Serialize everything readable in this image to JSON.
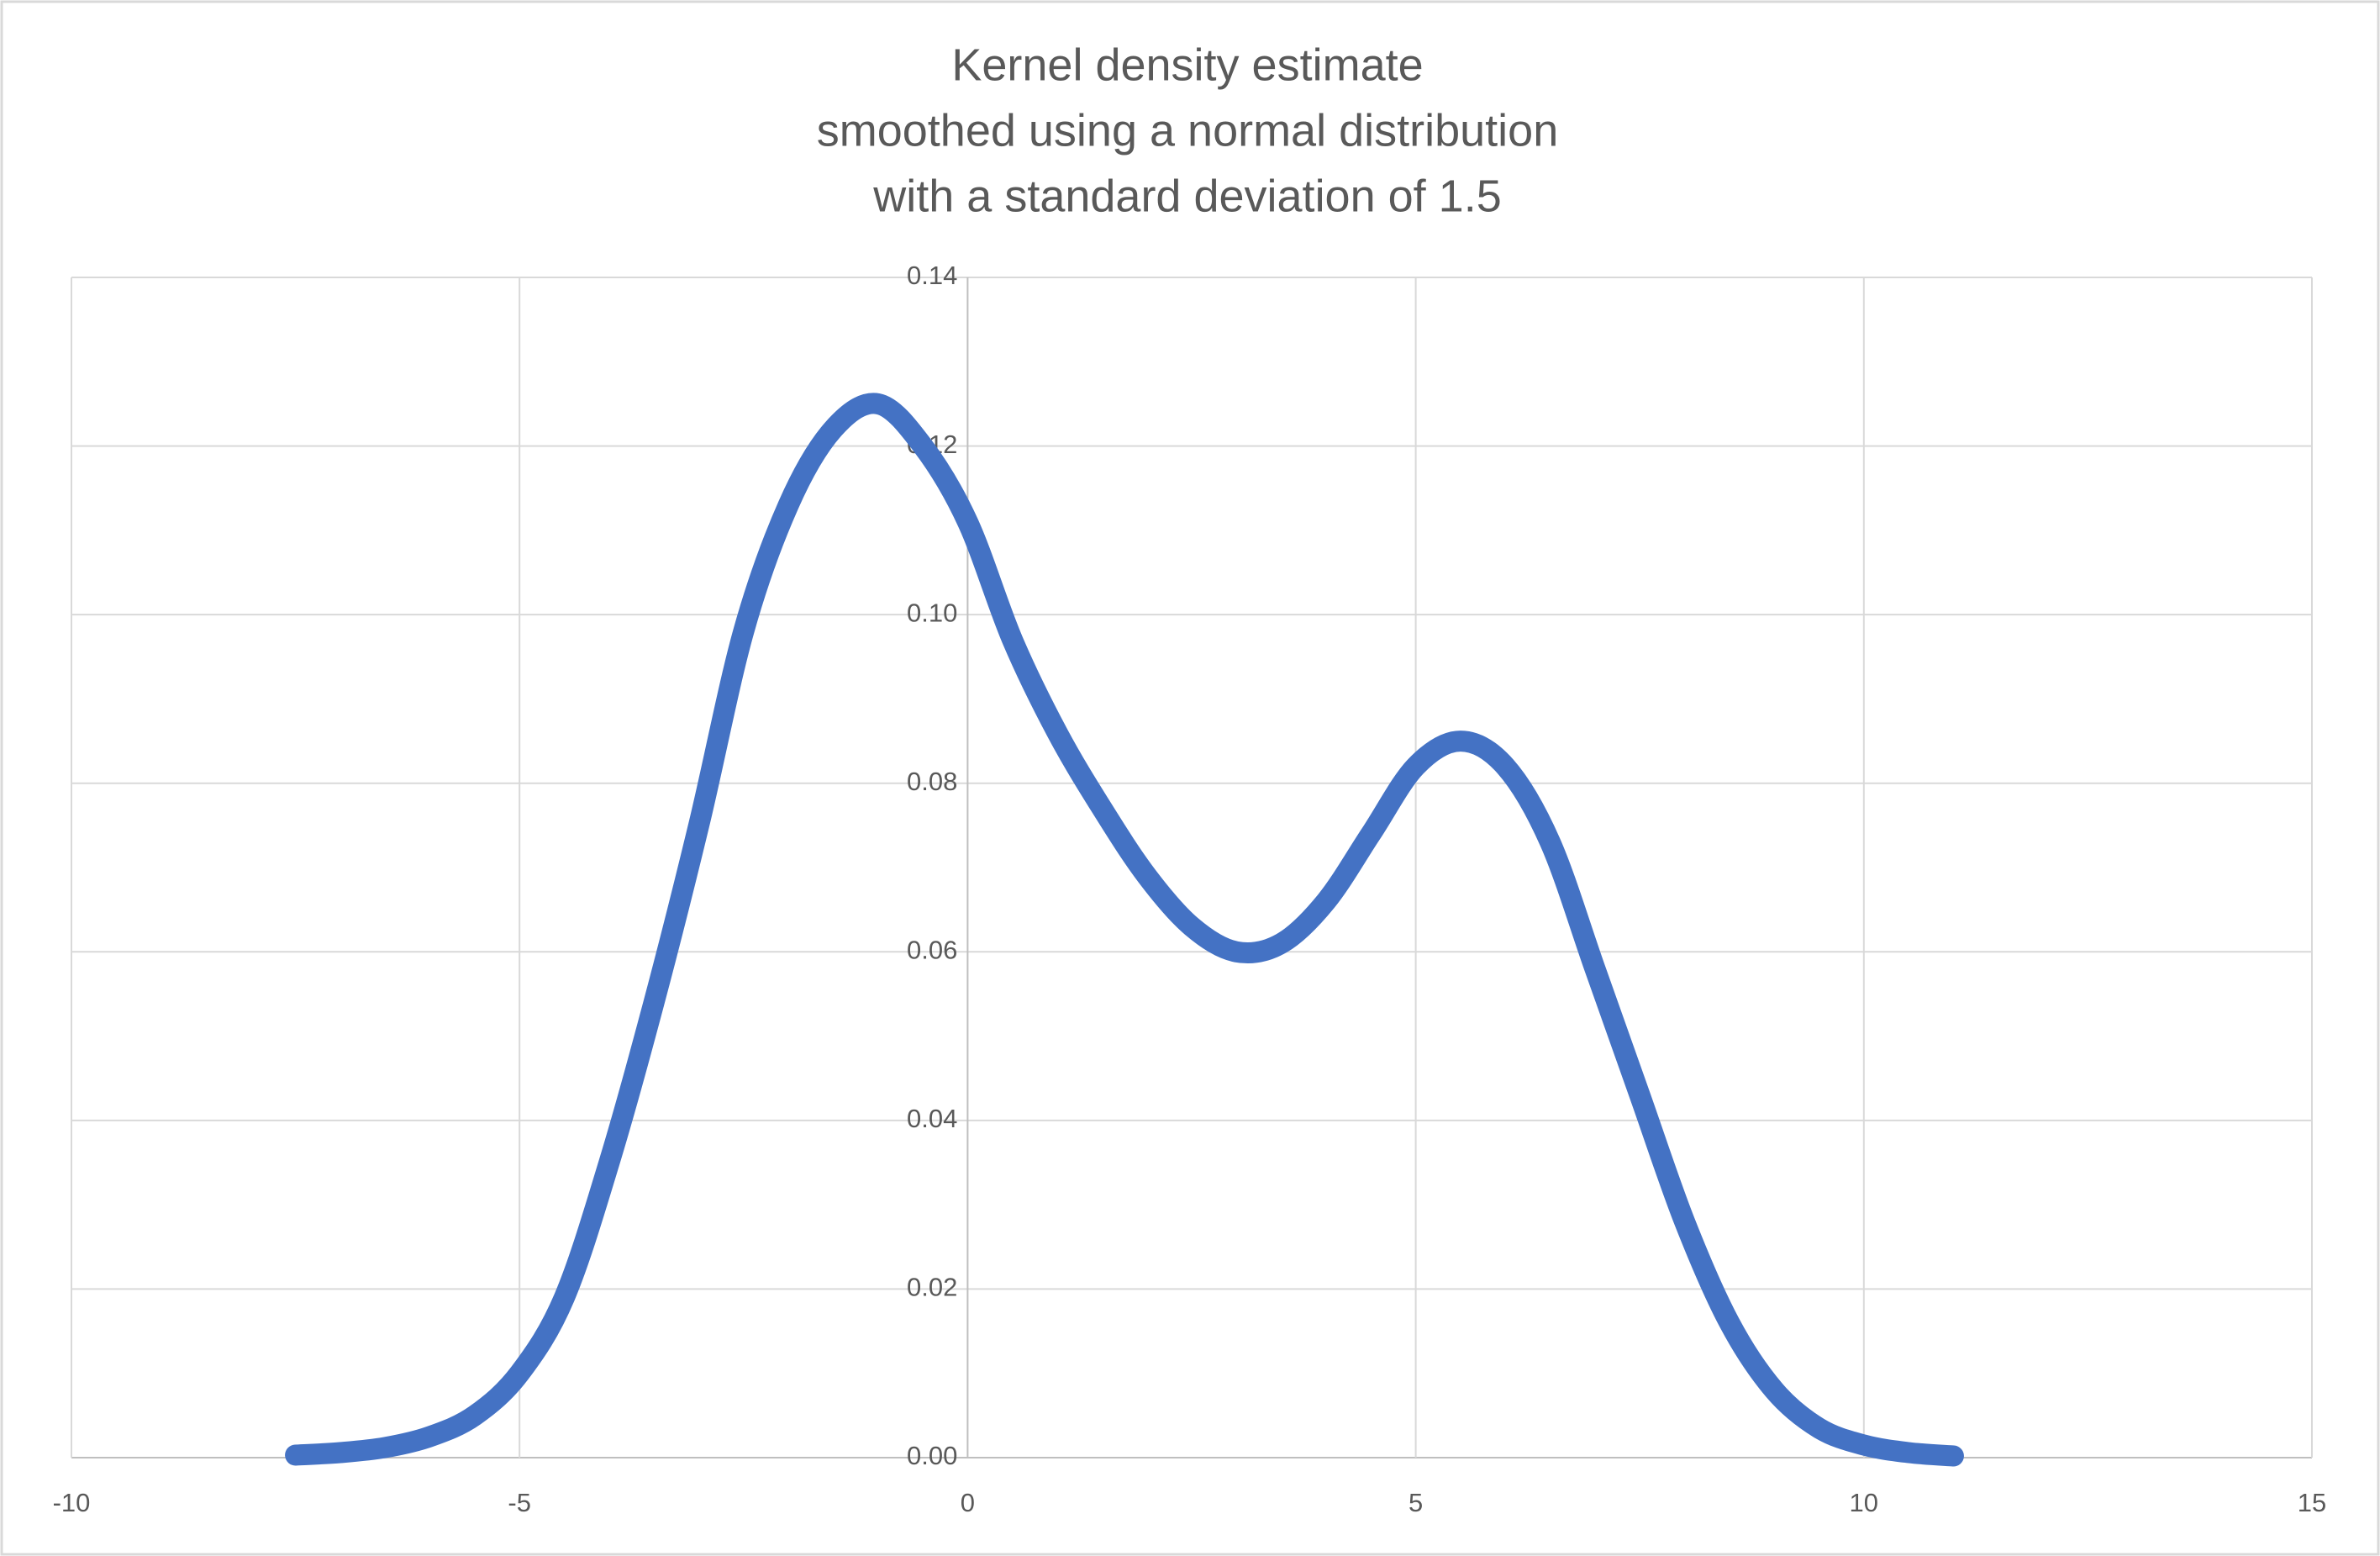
{
  "chart_data": {
    "type": "line",
    "title": [
      "Kernel density estimate",
      "smoothed using a normal distribution",
      "with a standard deviation of 1.5"
    ],
    "x": [
      -7.5,
      -7,
      -6.5,
      -6,
      -5.5,
      -5,
      -4.5,
      -4,
      -3.5,
      -3,
      -2.5,
      -2,
      -1.5,
      -1,
      -0.5,
      0,
      0.5,
      1,
      1.5,
      2,
      2.5,
      3,
      3.5,
      4,
      4.5,
      5,
      5.5,
      6,
      6.5,
      7,
      7.5,
      8,
      8.5,
      9,
      9.5,
      10,
      10.5,
      11
    ],
    "series": [
      {
        "color": "#4472c4",
        "values": [
          0.0003,
          0.0006,
          0.0012,
          0.0025,
          0.005,
          0.01,
          0.019,
          0.035,
          0.054,
          0.075,
          0.098,
          0.113,
          0.122,
          0.125,
          0.12,
          0.111,
          0.097,
          0.086,
          0.077,
          0.069,
          0.063,
          0.06,
          0.061,
          0.066,
          0.074,
          0.082,
          0.085,
          0.082,
          0.073,
          0.058,
          0.043,
          0.028,
          0.016,
          0.008,
          0.0035,
          0.0015,
          0.0006,
          0.0002
        ]
      }
    ],
    "xlim": [
      -10,
      15
    ],
    "xticks": [
      -10,
      -5,
      0,
      5,
      10,
      15
    ],
    "ylim": [
      0,
      0.14
    ],
    "yticks": [
      {
        "value": 0,
        "label": "0.00"
      },
      {
        "value": 0.02,
        "label": "0.02"
      },
      {
        "value": 0.04,
        "label": "0.04"
      },
      {
        "value": 0.06,
        "label": "0.06"
      },
      {
        "value": 0.08,
        "label": "0.08"
      },
      {
        "value": 0.1,
        "label": "0.10"
      },
      {
        "value": 0.12,
        "label": "0.12"
      },
      {
        "value": 0.14,
        "label": "0.14"
      }
    ],
    "grid": true
  }
}
